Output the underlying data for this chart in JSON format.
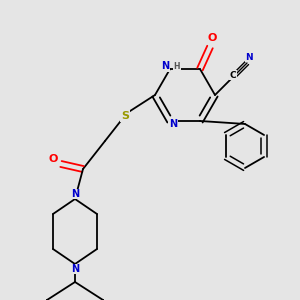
{
  "background_color": "#e5e5e5",
  "bond_color": "#000000",
  "atom_colors": {
    "N": "#0000cc",
    "O": "#ff0000",
    "S": "#999900",
    "C": "#000000",
    "H": "#555555"
  },
  "figsize": [
    3.0,
    3.0
  ],
  "dpi": 100
}
